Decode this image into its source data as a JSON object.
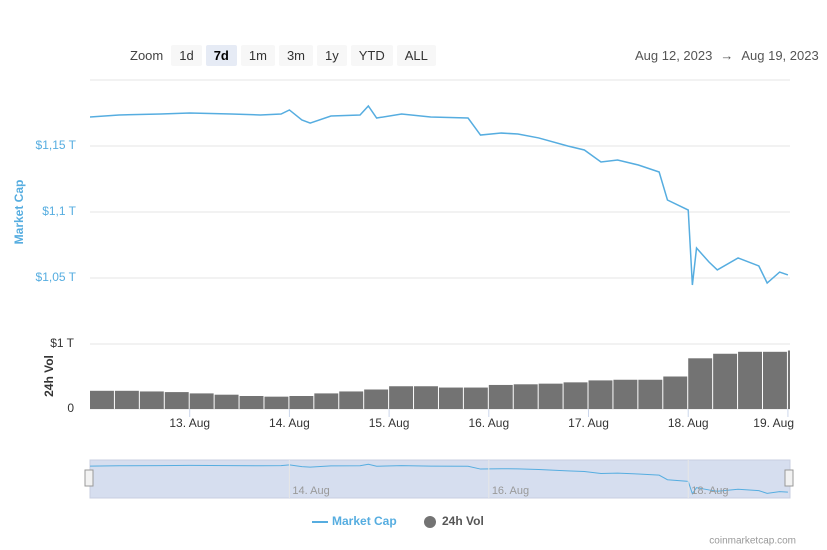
{
  "chart_data": {
    "type": "line",
    "range_selector": {
      "label": "Zoom",
      "buttons": [
        "1d",
        "7d",
        "1m",
        "3m",
        "1y",
        "YTD",
        "ALL"
      ],
      "selected": 1
    },
    "date_range": {
      "from": "Aug 12, 2023",
      "arrow": "→",
      "to": "Aug 19, 2023"
    },
    "x": [
      "2023-08-12T00:00",
      "2023-08-12T07:00",
      "2023-08-12T17:00",
      "2023-08-13T00:00",
      "2023-08-13T10:00",
      "2023-08-13T17:00",
      "2023-08-13T22:00",
      "2023-08-14T00:00",
      "2023-08-14T03:00",
      "2023-08-14T05:00",
      "2023-08-14T10:00",
      "2023-08-14T17:00",
      "2023-08-14T19:00",
      "2023-08-14T21:00",
      "2023-08-15T03:00",
      "2023-08-15T10:00",
      "2023-08-15T19:00",
      "2023-08-15T22:00",
      "2023-08-16T03:00",
      "2023-08-16T07:00",
      "2023-08-16T12:00",
      "2023-08-16T19:00",
      "2023-08-16T23:00",
      "2023-08-17T03:00",
      "2023-08-17T07:00",
      "2023-08-17T12:00",
      "2023-08-17T17:00",
      "2023-08-17T19:00",
      "2023-08-18T00:00",
      "2023-08-18T01:00",
      "2023-08-18T02:00",
      "2023-08-18T05:00",
      "2023-08-18T07:00",
      "2023-08-18T12:00",
      "2023-08-18T17:00",
      "2023-08-18T19:00",
      "2023-08-18T22:00",
      "2023-08-19T00:00"
    ],
    "xlim": [
      "2023-08-12T00:00",
      "2023-08-19T00:30"
    ],
    "xticks": [
      {
        "value": "2023-08-13T00:00",
        "label": "13. Aug"
      },
      {
        "value": "2023-08-14T00:00",
        "label": "14. Aug"
      },
      {
        "value": "2023-08-15T00:00",
        "label": "15. Aug"
      },
      {
        "value": "2023-08-16T00:00",
        "label": "16. Aug"
      },
      {
        "value": "2023-08-17T00:00",
        "label": "17. Aug"
      },
      {
        "value": "2023-08-18T00:00",
        "label": "18. Aug"
      },
      {
        "value": "2023-08-19T00:00",
        "label": "19. Aug"
      }
    ],
    "ylabel": "Market Cap",
    "ylim": [
      1.025,
      1.2
    ],
    "yticks": [
      {
        "value": 1.05,
        "label": "$1,05 T"
      },
      {
        "value": 1.1,
        "label": "$1,1 T"
      },
      {
        "value": 1.15,
        "label": "$1,15 T"
      }
    ],
    "y2label": "24h Vol",
    "y2lim": [
      0,
      1
    ],
    "y2ticks": [
      0,
      {
        "value": 1,
        "label": "$1 T"
      }
    ],
    "grid": true,
    "series": [
      {
        "name": "Market Cap",
        "color": "#56ade0",
        "values": [
          1.172,
          1.1735,
          1.1742,
          1.175,
          1.1742,
          1.1735,
          1.1742,
          1.1773,
          1.1697,
          1.1674,
          1.1727,
          1.1735,
          1.1803,
          1.1712,
          1.1742,
          1.172,
          1.1712,
          1.1583,
          1.1598,
          1.1591,
          1.1561,
          1.15,
          1.147,
          1.1379,
          1.1394,
          1.1356,
          1.1303,
          1.1091,
          1.1015,
          1.0447,
          1.0727,
          1.0621,
          1.0561,
          1.0652,
          1.0591,
          1.0462,
          1.0545,
          1.0523
        ]
      },
      {
        "name": "24h Vol",
        "type": "bar",
        "axis": "y2",
        "color": "#737373",
        "x": [
          "2023-08-12T00:00",
          "2023-08-12T06:00",
          "2023-08-12T12:00",
          "2023-08-12T18:00",
          "2023-08-13T00:00",
          "2023-08-13T06:00",
          "2023-08-13T12:00",
          "2023-08-13T18:00",
          "2023-08-14T00:00",
          "2023-08-14T06:00",
          "2023-08-14T12:00",
          "2023-08-14T18:00",
          "2023-08-15T00:00",
          "2023-08-15T06:00",
          "2023-08-15T12:00",
          "2023-08-15T18:00",
          "2023-08-16T00:00",
          "2023-08-16T06:00",
          "2023-08-16T12:00",
          "2023-08-16T18:00",
          "2023-08-17T00:00",
          "2023-08-17T06:00",
          "2023-08-17T12:00",
          "2023-08-17T18:00",
          "2023-08-18T00:00",
          "2023-08-18T06:00",
          "2023-08-18T12:00",
          "2023-08-18T18:00",
          "2023-08-19T00:00"
        ],
        "values": [
          0.28,
          0.28,
          0.27,
          0.26,
          0.24,
          0.22,
          0.2,
          0.19,
          0.2,
          0.24,
          0.27,
          0.3,
          0.35,
          0.35,
          0.33,
          0.33,
          0.37,
          0.38,
          0.39,
          0.41,
          0.44,
          0.45,
          0.45,
          0.5,
          0.78,
          0.85,
          0.88,
          0.88,
          0.9
        ]
      }
    ],
    "navigator": {
      "xticks": [
        {
          "value": "2023-08-14T00:00",
          "label": "14. Aug"
        },
        {
          "value": "2023-08-16T00:00",
          "label": "16. Aug"
        },
        {
          "value": "2023-08-18T00:00",
          "label": "18. Aug"
        }
      ]
    },
    "credit": "coinmarketcap.com"
  }
}
